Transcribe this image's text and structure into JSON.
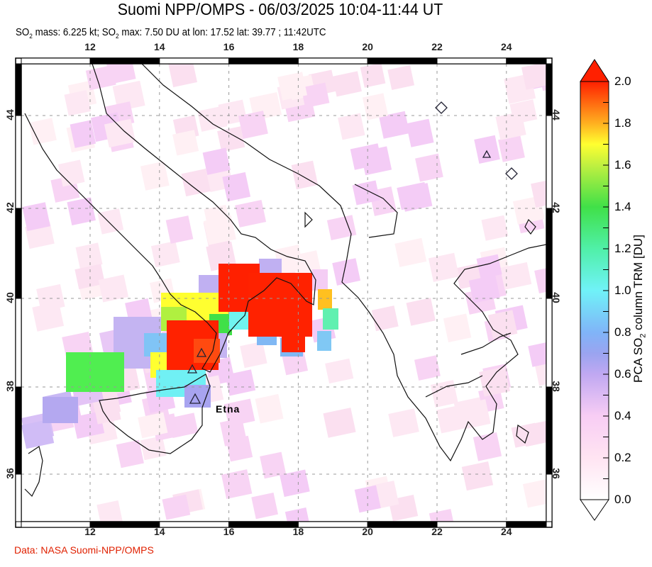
{
  "header": {
    "title": "Suomi NPP/OMPS - 06/03/2025 10:04-11:44 UT",
    "subtitle": {
      "so2_a": "SO",
      "sub_a": "2",
      "mass_text": " mass: 6.225 kt; SO",
      "sub_b": "2",
      "max_text": " max: 7.50 DU at lon: 17.52 lat: 39.77 ; 11:42UTC"
    }
  },
  "map": {
    "lon_ticks": [
      "12",
      "14",
      "16",
      "18",
      "20",
      "22",
      "24"
    ],
    "lat_ticks": [
      "44",
      "42",
      "40",
      "38",
      "36"
    ],
    "volcano_label": "Etna"
  },
  "colorbar": {
    "ticks": [
      "2.0",
      "1.8",
      "1.6",
      "1.4",
      "1.2",
      "1.0",
      "0.8",
      "0.6",
      "0.4",
      "0.2",
      "0.0"
    ],
    "label_pre": "PCA SO",
    "label_sub": "2",
    "label_post": " column TRM [DU]",
    "range": [
      0.0,
      2.0
    ],
    "colors": {
      "max": "#ff2000",
      "mid": "#70f0f8",
      "min": "#ffffff"
    }
  },
  "footer": "Data: NASA Suomi-NPP/OMPS"
}
